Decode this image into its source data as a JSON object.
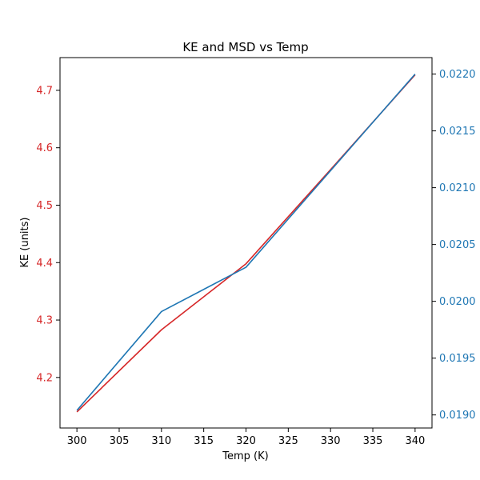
{
  "chart_data": {
    "type": "line",
    "title": "KE and MSD vs Temp",
    "xlabel": "Temp (K)",
    "ylabel_left": "KE (units)",
    "ylabel_right": "",
    "x": [
      300,
      310,
      320,
      330,
      340
    ],
    "xlim": [
      298,
      342
    ],
    "x_ticks": [
      300,
      305,
      310,
      315,
      320,
      325,
      330,
      335,
      340
    ],
    "y_left": {
      "lim": [
        4.112,
        4.757
      ],
      "ticks": [
        4.2,
        4.3,
        4.4,
        4.5,
        4.6,
        4.7
      ],
      "tick_labels": [
        "4.2",
        "4.3",
        "4.4",
        "4.5",
        "4.6",
        "4.7"
      ],
      "color": "#d62728"
    },
    "y_right": {
      "lim": [
        0.018885,
        0.022145
      ],
      "ticks": [
        0.019,
        0.0195,
        0.02,
        0.0205,
        0.021,
        0.0215,
        0.022
      ],
      "tick_labels": [
        "0.0190",
        "0.0195",
        "0.0200",
        "0.0205",
        "0.0210",
        "0.0215",
        "0.0220"
      ],
      "color": "#1f77b4"
    },
    "series": [
      {
        "axis": "left",
        "color": "#d62728",
        "values": [
          4.14,
          4.283,
          4.398,
          4.562,
          4.727
        ]
      },
      {
        "axis": "right",
        "color": "#1f77b4",
        "values": [
          0.01904,
          0.01991,
          0.0203,
          0.02115,
          0.022
        ]
      }
    ],
    "grid": false,
    "legend": "none"
  }
}
